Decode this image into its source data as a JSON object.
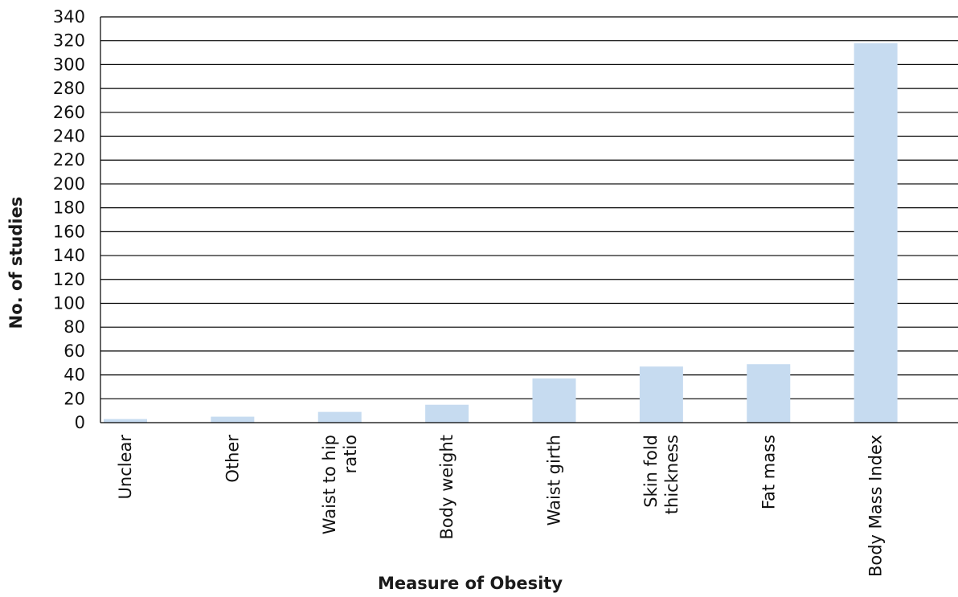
{
  "chart_data": {
    "type": "bar",
    "categories": [
      "Unclear",
      "Other",
      "Waist to hip ratio",
      "Body weight",
      "Waist girth",
      "Skin fold thickness",
      "Fat mass",
      "Body Mass Index"
    ],
    "category_labels": [
      [
        "Unclear"
      ],
      [
        "Other"
      ],
      [
        "Waist to hip",
        "ratio"
      ],
      [
        "Body weight"
      ],
      [
        "Waist girth"
      ],
      [
        "Skin fold",
        "thickness"
      ],
      [
        "Fat mass"
      ],
      [
        "Body Mass Index"
      ]
    ],
    "values": [
      3,
      5,
      9,
      15,
      37,
      47,
      49,
      318
    ],
    "xlabel": "Measure of Obesity",
    "ylabel": "No. of studies",
    "ylim": [
      0,
      340
    ],
    "yticks": [
      0,
      20,
      40,
      60,
      80,
      100,
      120,
      140,
      160,
      180,
      200,
      220,
      240,
      260,
      280,
      300,
      320,
      340
    ],
    "grid": true,
    "colors": {
      "bar": "#c6dbf0",
      "grid": "#000000",
      "axis": "#000000"
    }
  }
}
